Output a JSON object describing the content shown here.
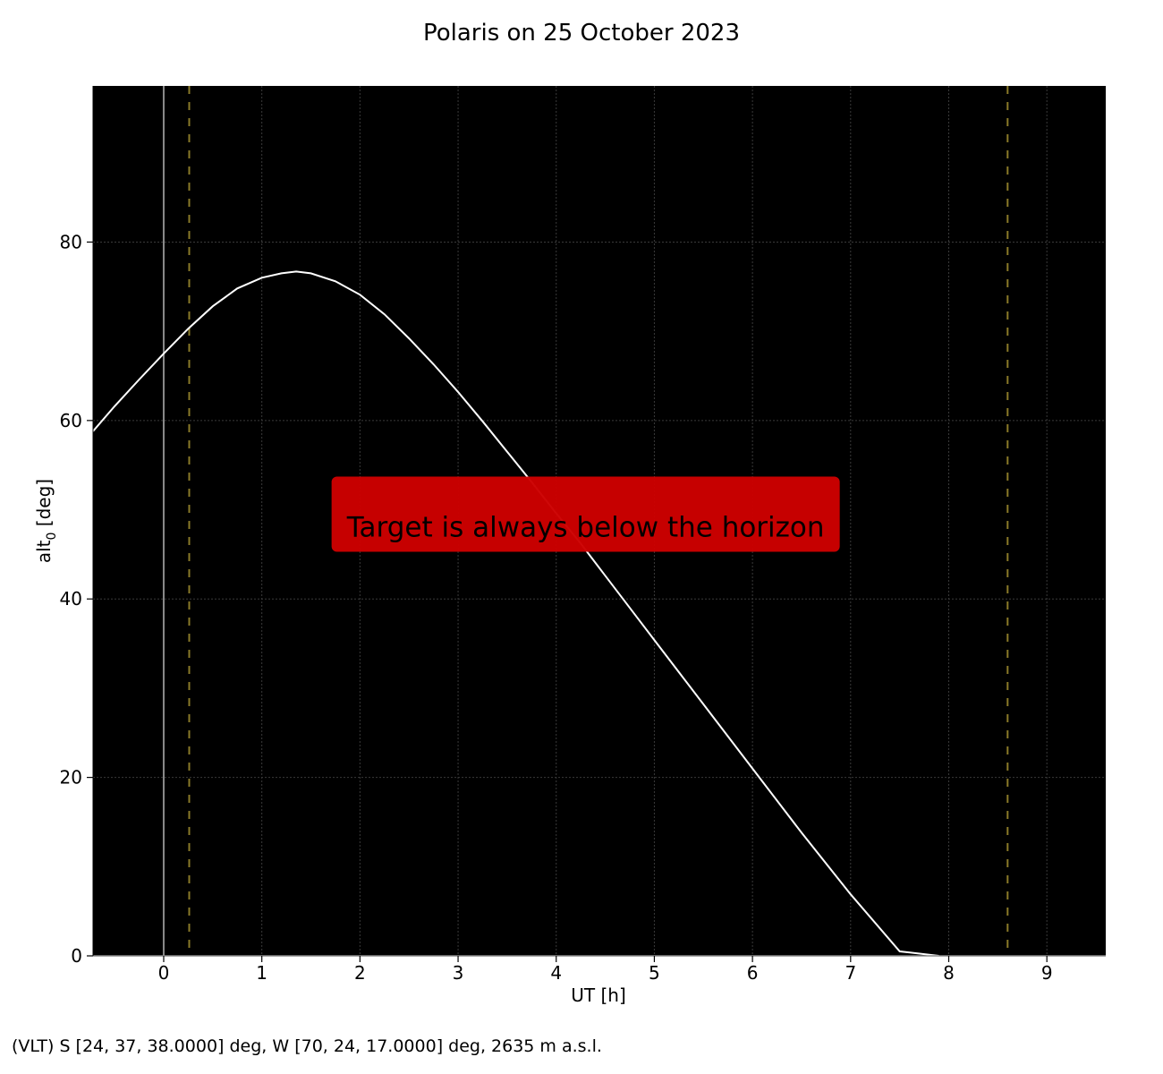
{
  "chart_data": {
    "type": "line",
    "title": "Polaris on 25 October 2023",
    "xlabel": "UT [h]",
    "ylabel_main": "alt",
    "ylabel_sub": "0",
    "ylabel_unit": " [deg]",
    "xlim": [
      -0.72,
      9.6
    ],
    "ylim": [
      0,
      97.5
    ],
    "xticks": [
      0,
      1,
      2,
      3,
      4,
      5,
      6,
      7,
      8,
      9
    ],
    "yticks": [
      0,
      20,
      40,
      60,
      80
    ],
    "grid": true,
    "background": "#000000",
    "series": [
      {
        "x": [
          -0.72,
          -0.5,
          -0.25,
          0,
          0.25,
          0.5,
          0.75,
          1.0,
          1.2,
          1.35,
          1.5,
          1.75,
          2.0,
          2.25,
          2.5,
          2.75,
          3.0,
          3.25,
          3.5,
          3.75,
          4.0,
          4.25,
          4.5,
          4.75,
          5.0,
          5.5,
          6.0,
          6.5,
          7.0,
          7.5,
          7.9
        ],
        "y": [
          58.8,
          61.6,
          64.6,
          67.5,
          70.3,
          72.8,
          74.8,
          76.0,
          76.5,
          76.7,
          76.5,
          75.6,
          74.1,
          71.9,
          69.2,
          66.3,
          63.2,
          59.9,
          56.5,
          53.1,
          49.6,
          46.2,
          42.6,
          39.0,
          35.4,
          28.2,
          21.0,
          13.8,
          6.9,
          0.5,
          0
        ]
      }
    ],
    "vlines": [
      {
        "x": 0,
        "style": "solid",
        "color": "#8a8a8a"
      },
      {
        "x": 0.26,
        "style": "dashed",
        "color": "#8a7a28"
      },
      {
        "x": 8.6,
        "style": "dashed",
        "color": "#8a7a28"
      }
    ],
    "annotation": {
      "text": "Target is always below the horizon",
      "x": 4.3,
      "y": 48,
      "box_color": "#cc0000",
      "text_color": "#000000"
    },
    "line_color": "#ffffff"
  },
  "footer": {
    "location": "(VLT) S [24, 37, 38.0000] deg, W [70, 24, 17.0000] deg, 2635 m a.s.l."
  }
}
